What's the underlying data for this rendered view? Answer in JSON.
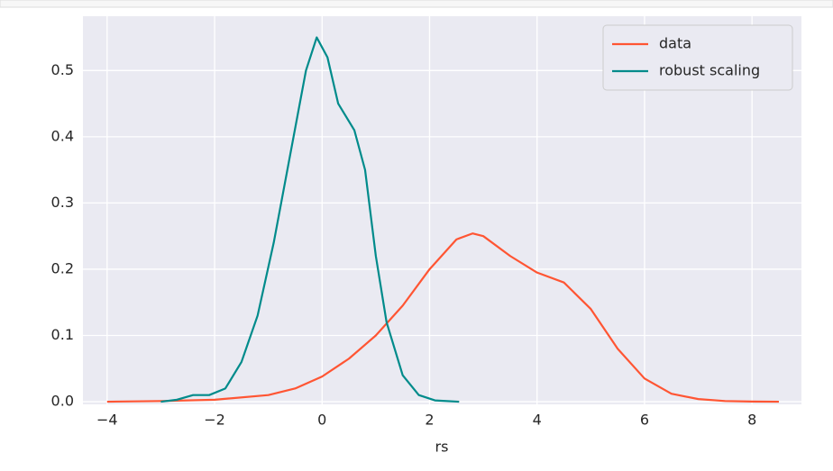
{
  "chart_data": {
    "type": "line",
    "x_label": "rs",
    "xlim": [
      -4.45,
      8.92
    ],
    "ylim": [
      -0.004,
      0.582
    ],
    "xticks": [
      {
        "value": -4,
        "label": "−4"
      },
      {
        "value": -2,
        "label": "−2"
      },
      0,
      2,
      4,
      6,
      8
    ],
    "yticks": [
      {
        "value": 0,
        "label": "0.0"
      },
      {
        "value": 0.1,
        "label": "0.1"
      },
      {
        "value": 0.2,
        "label": "0.2"
      },
      {
        "value": 0.3,
        "label": "0.3"
      },
      {
        "value": 0.4,
        "label": "0.4"
      },
      {
        "value": 0.5,
        "label": "0.5"
      }
    ],
    "grid": true,
    "legend": "upper right",
    "series": [
      {
        "name": "data",
        "color": "#ff5533",
        "x": [
          -4,
          -3,
          -2,
          -1,
          -0.5,
          0,
          0.5,
          1,
          1.5,
          2,
          2.5,
          2.8,
          3,
          3.5,
          4,
          4.5,
          5,
          5.5,
          6,
          6.5,
          7,
          7.5,
          8,
          8.5
        ],
        "values": [
          0,
          0.001,
          0.003,
          0.01,
          0.02,
          0.038,
          0.065,
          0.1,
          0.145,
          0.2,
          0.245,
          0.254,
          0.25,
          0.22,
          0.195,
          0.18,
          0.14,
          0.08,
          0.035,
          0.012,
          0.004,
          0.001,
          0.0003,
          0
        ]
      },
      {
        "name": "robust scaling",
        "color": "#008b8b",
        "x": [
          -3,
          -2.7,
          -2.4,
          -2.1,
          -1.8,
          -1.5,
          -1.2,
          -0.9,
          -0.6,
          -0.3,
          -0.1,
          0.1,
          0.3,
          0.6,
          0.8,
          1.0,
          1.2,
          1.5,
          1.8,
          2.1,
          2.55
        ],
        "values": [
          0,
          0.003,
          0.01,
          0.01,
          0.02,
          0.06,
          0.13,
          0.24,
          0.37,
          0.5,
          0.55,
          0.52,
          0.45,
          0.41,
          0.35,
          0.22,
          0.12,
          0.04,
          0.01,
          0.002,
          0
        ]
      }
    ]
  }
}
